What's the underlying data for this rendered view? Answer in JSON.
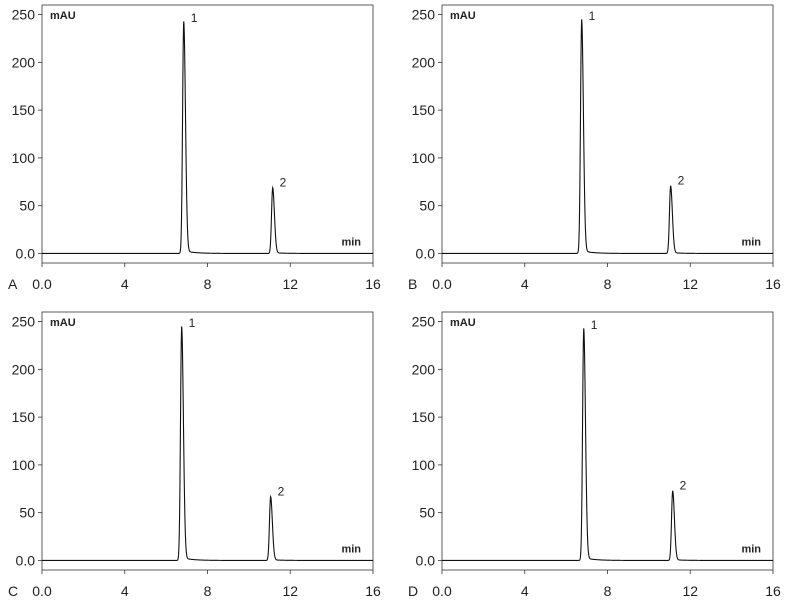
{
  "chart_data": [
    {
      "type": "line",
      "panel_label": "A",
      "ylabel": "mAU",
      "xlabel": "min",
      "xlim": [
        0,
        16
      ],
      "ylim": [
        -10,
        260
      ],
      "x_ticks": [
        0,
        4,
        8,
        12,
        16
      ],
      "x_tick_labels": [
        "0.0",
        "4",
        "8",
        "12",
        "16"
      ],
      "y_ticks": [
        0,
        50,
        100,
        150,
        200,
        250
      ],
      "y_tick_labels": [
        "0.0",
        "50",
        "100",
        "150",
        "200",
        "250"
      ],
      "grid": false,
      "peaks": [
        {
          "label": "1",
          "retention_time": 6.85,
          "height": 240
        },
        {
          "label": "2",
          "retention_time": 11.15,
          "height": 68
        }
      ]
    },
    {
      "type": "line",
      "panel_label": "B",
      "ylabel": "mAU",
      "xlabel": "min",
      "xlim": [
        0,
        16
      ],
      "ylim": [
        -10,
        260
      ],
      "x_ticks": [
        0,
        4,
        8,
        12,
        16
      ],
      "x_tick_labels": [
        "0.0",
        "4",
        "8",
        "12",
        "16"
      ],
      "y_ticks": [
        0,
        50,
        100,
        150,
        200,
        250
      ],
      "y_tick_labels": [
        "0.0",
        "50",
        "100",
        "150",
        "200",
        "250"
      ],
      "grid": false,
      "peaks": [
        {
          "label": "1",
          "retention_time": 6.75,
          "height": 242
        },
        {
          "label": "2",
          "retention_time": 11.05,
          "height": 70
        }
      ]
    },
    {
      "type": "line",
      "panel_label": "C",
      "ylabel": "mAU",
      "xlabel": "min",
      "xlim": [
        0,
        16
      ],
      "ylim": [
        -10,
        260
      ],
      "x_ticks": [
        0,
        4,
        8,
        12,
        16
      ],
      "x_tick_labels": [
        "0.0",
        "4",
        "8",
        "12",
        "16"
      ],
      "y_ticks": [
        0,
        50,
        100,
        150,
        200,
        250
      ],
      "y_tick_labels": [
        "0.0",
        "50",
        "100",
        "150",
        "200",
        "250"
      ],
      "grid": false,
      "peaks": [
        {
          "label": "1",
          "retention_time": 6.75,
          "height": 242
        },
        {
          "label": "2",
          "retention_time": 11.05,
          "height": 66
        }
      ]
    },
    {
      "type": "line",
      "panel_label": "D",
      "ylabel": "mAU",
      "xlabel": "min",
      "xlim": [
        0,
        16
      ],
      "ylim": [
        -10,
        260
      ],
      "x_ticks": [
        0,
        4,
        8,
        12,
        16
      ],
      "x_tick_labels": [
        "0.0",
        "4",
        "8",
        "12",
        "16"
      ],
      "y_ticks": [
        0,
        50,
        100,
        150,
        200,
        250
      ],
      "y_tick_labels": [
        "0.0",
        "50",
        "100",
        "150",
        "200",
        "250"
      ],
      "grid": false,
      "peaks": [
        {
          "label": "1",
          "retention_time": 6.85,
          "height": 240
        },
        {
          "label": "2",
          "retention_time": 11.15,
          "height": 72
        }
      ]
    }
  ]
}
